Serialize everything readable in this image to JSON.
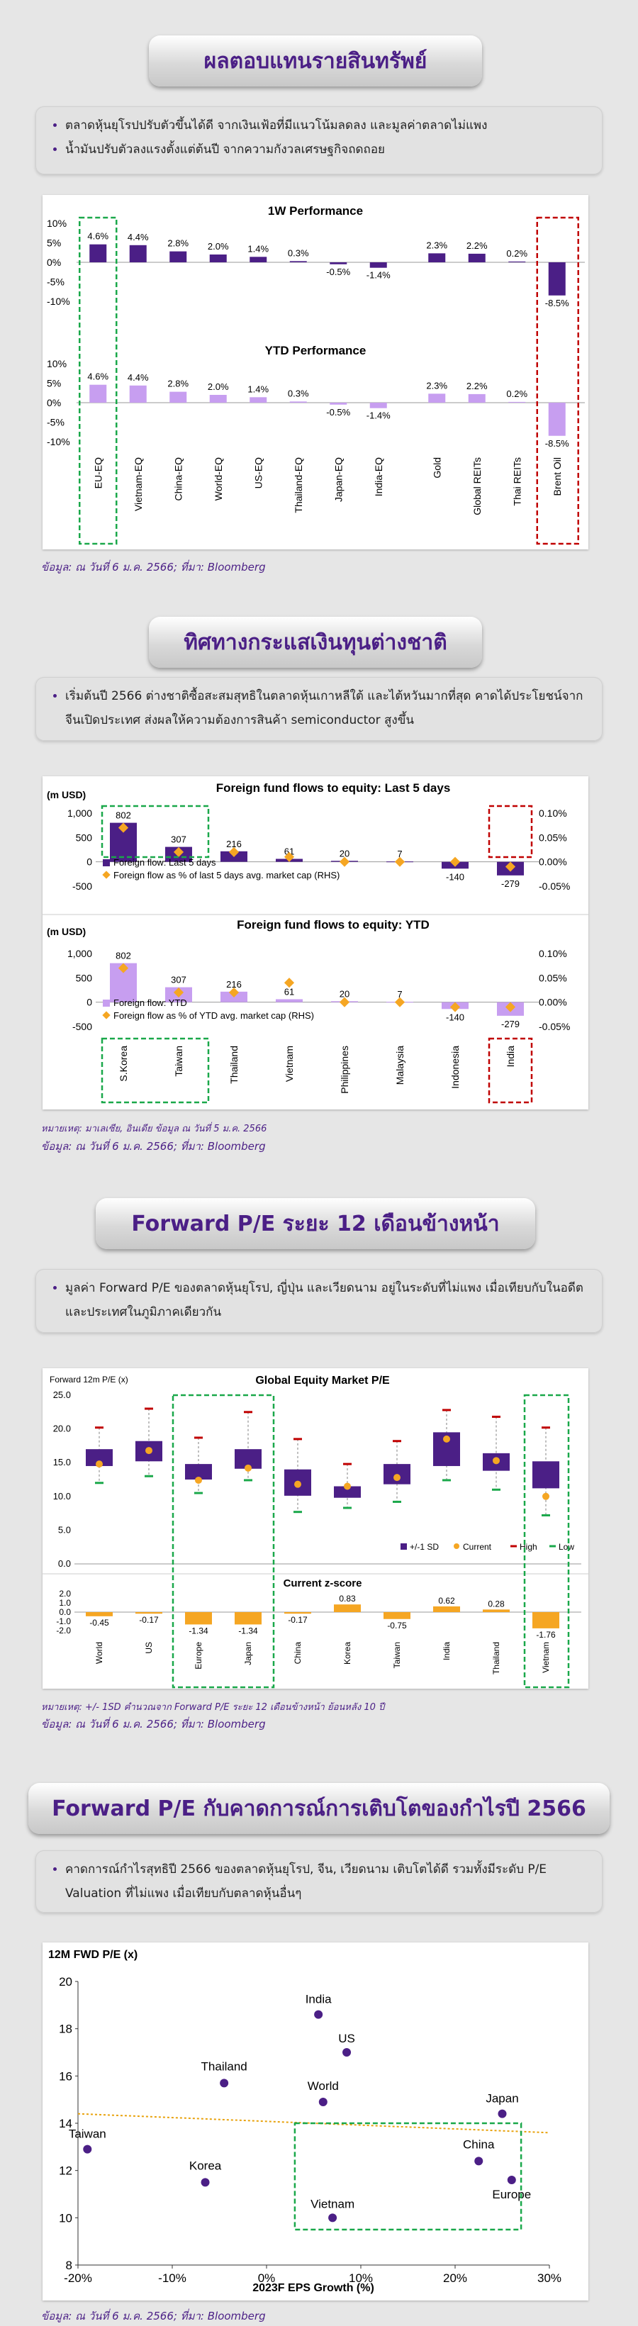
{
  "section1": {
    "title": "ผลตอบแทนรายสินทรัพย์",
    "bullets": [
      "ตลาดหุ้นยุโรปปรับตัวขึ้นได้ดี จากเงินเฟ้อที่มีแนวโน้มลดลง และมูลค่าตลาดไม่แพง",
      "น้ำมันปรับตัวลงแรงตั้งแต่ต้นปี จากความกังวลเศรษฐกิจถดถอย"
    ],
    "source": "ข้อมูล: ณ วันที่ 6 ม.ค. 2566; ที่มา: Bloomberg"
  },
  "section2": {
    "title": "ทิศทางกระแสเงินทุนต่างชาติ",
    "bullets": [
      "เริ่มต้นปี 2566 ต่างชาติซื้อสะสมสุทธิในตลาดหุ้นเกาหลีใต้ และไต้หวันมากที่สุด คาดได้ประโยชน์จากจีนเปิดประเทศ ส่งผลให้ความต้องการสินค้า semiconductor สูงขึ้น"
    ],
    "note": "หมายเหตุ: มาเลเซีย, อินเดีย ข้อมูล ณ วันที่ 5 ม.ค. 2566",
    "source": "ข้อมูล: ณ วันที่ 6 ม.ค. 2566; ที่มา: Bloomberg"
  },
  "section3": {
    "title": "Forward P/E ระยะ 12 เดือนข้างหน้า",
    "bullets": [
      "มูลค่า Forward P/E ของตลาดหุ้นยุโรป, ญี่ปุ่น และเวียดนาม อยู่ในระดับที่ไม่แพง เมื่อเทียบกับในอดีต และประเทศในภูมิภาคเดียวกัน"
    ],
    "note": "หมายเหตุ: +/- 1SD คำนวณจาก Forward P/E ระยะ 12 เดือนข้างหน้า ย้อนหลัง 10 ปี",
    "source": "ข้อมูล: ณ วันที่ 6 ม.ค. 2566; ที่มา: Bloomberg"
  },
  "section4": {
    "title": "Forward P/E กับคาดการณ์การเติบโตของกำไรปี 2566",
    "bullets": [
      "คาดการณ์กำไรสุทธิปี 2566 ของตลาดหุ้นยุโรป, จีน, เวียดนาม เติบโตได้ดี รวมทั้งมีระดับ P/E Valuation ที่ไม่แพง เมื่อเทียบกับตลาดหุ้นอื่นๆ"
    ],
    "source": "ข้อมูล: ณ วันที่ 6 ม.ค. 2566; ที่มา: Bloomberg"
  },
  "colors": {
    "purple": "#4b1f86",
    "lilac": "#c79ef0",
    "orange": "#f5a623",
    "red": "#c00000",
    "green": "#1aa84a",
    "trend": "#e8a20c"
  },
  "chart_data": [
    {
      "type": "bar",
      "title": "1W Performance",
      "categories": [
        "EU-EQ",
        "Vietnam-EQ",
        "China-EQ",
        "World-EQ",
        "US-EQ",
        "Thailand-EQ",
        "Japan-EQ",
        "India-EQ",
        "Gold",
        "Global REITs",
        "Thai REITs",
        "Brent Oil"
      ],
      "values": [
        4.6,
        4.4,
        2.8,
        2.0,
        1.4,
        0.3,
        -0.5,
        -1.4,
        2.3,
        2.2,
        0.2,
        -8.5
      ],
      "labels": [
        "4.6%",
        "4.4%",
        "2.8%",
        "2.0%",
        "1.4%",
        "0.3%",
        "-0.5%",
        "-1.4%",
        "2.3%",
        "2.2%",
        "0.2%",
        "-8.5%"
      ],
      "ylim": [
        -10,
        10
      ],
      "yticks": [
        "10%",
        "5%",
        "0%",
        "-5%",
        "-10%"
      ],
      "highlight_good": [
        "EU-EQ"
      ],
      "highlight_bad": [
        "Brent Oil"
      ]
    },
    {
      "type": "bar",
      "title": "YTD Performance",
      "categories": [
        "EU-EQ",
        "Vietnam-EQ",
        "China-EQ",
        "World-EQ",
        "US-EQ",
        "Thailand-EQ",
        "Japan-EQ",
        "India-EQ",
        "Gold",
        "Global REITs",
        "Thai REITs",
        "Brent Oil"
      ],
      "values": [
        4.6,
        4.4,
        2.8,
        2.0,
        1.4,
        0.3,
        -0.5,
        -1.4,
        2.3,
        2.2,
        0.2,
        -8.5
      ],
      "labels": [
        "4.6%",
        "4.4%",
        "2.8%",
        "2.0%",
        "1.4%",
        "0.3%",
        "-0.5%",
        "-1.4%",
        "2.3%",
        "2.2%",
        "0.2%",
        "-8.5%"
      ],
      "ylim": [
        -10,
        10
      ],
      "yticks": [
        "10%",
        "5%",
        "0%",
        "-5%",
        "-10%"
      ]
    },
    {
      "type": "bar",
      "title": "Foreign fund flows to equity: Last 5 days",
      "ylabel": "(m USD)",
      "categories": [
        "S.Korea",
        "Taiwan",
        "Thailand",
        "Vietnam",
        "Philippines",
        "Malaysia",
        "Indonesia",
        "India"
      ],
      "values": [
        802,
        307,
        216,
        61,
        20,
        7,
        -140,
        -279
      ],
      "labels": [
        "802",
        "307",
        "216",
        "61",
        "20",
        "7",
        "-140",
        "-279"
      ],
      "rhs_values": [
        0.07,
        0.02,
        0.02,
        0.01,
        0.0,
        0.0,
        0.0,
        -0.01
      ],
      "ylim": [
        -500,
        1000
      ],
      "yticks": [
        "1,000",
        "500",
        "0",
        "-500"
      ],
      "rhs_ylim": [
        -0.05,
        0.1
      ],
      "rhs_ticks": [
        "0.10%",
        "0.05%",
        "0.00%",
        "-0.05%"
      ],
      "legend": [
        "Foreign flow: Last 5 days",
        "Foreign flow as % of last 5 days avg. market cap (RHS)"
      ],
      "highlight_good": [
        "S.Korea",
        "Taiwan"
      ],
      "highlight_bad": [
        "India"
      ]
    },
    {
      "type": "bar",
      "title": "Foreign fund flows to equity: YTD",
      "ylabel": "(m USD)",
      "categories": [
        "S.Korea",
        "Taiwan",
        "Thailand",
        "Vietnam",
        "Philippines",
        "Malaysia",
        "Indonesia",
        "India"
      ],
      "values": [
        802,
        307,
        216,
        61,
        20,
        7,
        -140,
        -279
      ],
      "labels": [
        "802",
        "307",
        "216",
        "61",
        "20",
        "7",
        "-140",
        "-279"
      ],
      "rhs_values": [
        0.07,
        0.02,
        0.02,
        0.04,
        0.0,
        0.0,
        -0.01,
        -0.01
      ],
      "ylim": [
        -500,
        1000
      ],
      "yticks": [
        "1,000",
        "500",
        "0",
        "-500"
      ],
      "rhs_ylim": [
        -0.05,
        0.1
      ],
      "rhs_ticks": [
        "0.10%",
        "0.05%",
        "0.00%",
        "-0.05%"
      ],
      "legend": [
        "Foreign flow: YTD",
        "Foreign flow as % of YTD avg. market cap (RHS)"
      ]
    },
    {
      "type": "box",
      "title": "Global Equity Market P/E",
      "ylabel": "Forward 12m P/E (x)",
      "categories": [
        "World",
        "US",
        "Europe",
        "Japan",
        "China",
        "Korea",
        "Taiwan",
        "India",
        "Thailand",
        "Vietnam"
      ],
      "minus_sd": [
        14.5,
        15.2,
        12.5,
        14.1,
        10.1,
        9.8,
        11.8,
        14.5,
        13.8,
        11.2
      ],
      "plus_sd": [
        17.0,
        18.2,
        14.8,
        17.0,
        14.0,
        11.5,
        14.8,
        19.5,
        16.4,
        15.2
      ],
      "current": [
        14.8,
        16.8,
        12.4,
        14.2,
        11.8,
        11.5,
        12.8,
        18.5,
        15.3,
        10.0
      ],
      "high": [
        20.2,
        23.0,
        18.7,
        22.5,
        18.5,
        14.8,
        18.2,
        22.8,
        21.8,
        20.2
      ],
      "low": [
        12.0,
        13.0,
        10.5,
        12.4,
        7.7,
        8.3,
        9.2,
        12.4,
        11.0,
        7.2
      ],
      "ylim": [
        0,
        25
      ],
      "yticks": [
        "25.0",
        "20.0",
        "15.0",
        "10.0",
        "5.0",
        "0.0"
      ],
      "legend": [
        "+/-1 SD",
        "Current",
        "High",
        "Low"
      ],
      "highlight_good": [
        "Europe",
        "Japan",
        "Vietnam"
      ]
    },
    {
      "type": "bar",
      "title": "Current z-score",
      "categories": [
        "World",
        "US",
        "Europe",
        "Japan",
        "China",
        "Korea",
        "Taiwan",
        "India",
        "Thailand",
        "Vietnam"
      ],
      "values": [
        -0.45,
        -0.17,
        -1.34,
        -1.34,
        -0.17,
        0.83,
        -0.75,
        0.62,
        0.28,
        -1.76
      ],
      "labels": [
        "-0.45",
        "-0.17",
        "-1.34",
        "-1.34",
        "-0.17",
        "0.83",
        "-0.75",
        "0.62",
        "0.28",
        "-1.76"
      ],
      "ylim": [
        -2,
        2
      ],
      "yticks": [
        "2.0",
        "1.0",
        "0.0",
        "-1.0",
        "-2.0"
      ]
    },
    {
      "type": "scatter",
      "ylabel": "12M FWD P/E (x)",
      "xlabel": "2023F EPS Growth (%)",
      "xlim": [
        -20,
        30
      ],
      "ylim": [
        8,
        20
      ],
      "xticks": [
        "-20%",
        "-10%",
        "0%",
        "10%",
        "20%",
        "30%"
      ],
      "yticks": [
        "20",
        "18",
        "16",
        "14",
        "12",
        "10",
        "8"
      ],
      "points": [
        {
          "label": "India",
          "x": 5.5,
          "y": 18.6
        },
        {
          "label": "US",
          "x": 8.5,
          "y": 17.0
        },
        {
          "label": "Thailand",
          "x": -4.5,
          "y": 15.7
        },
        {
          "label": "World",
          "x": 6.0,
          "y": 14.9
        },
        {
          "label": "Japan",
          "x": 25.0,
          "y": 14.4
        },
        {
          "label": "Taiwan",
          "x": -19.0,
          "y": 12.9
        },
        {
          "label": "China",
          "x": 22.5,
          "y": 12.4
        },
        {
          "label": "Korea",
          "x": -6.5,
          "y": 11.5
        },
        {
          "label": "Europe",
          "x": 26.0,
          "y": 11.6
        },
        {
          "label": "Vietnam",
          "x": 7.0,
          "y": 10.0
        }
      ],
      "trend": [
        [
          -20,
          14.4
        ],
        [
          30,
          13.6
        ]
      ],
      "highlight_good": [
        "China",
        "Europe",
        "Vietnam"
      ]
    }
  ]
}
